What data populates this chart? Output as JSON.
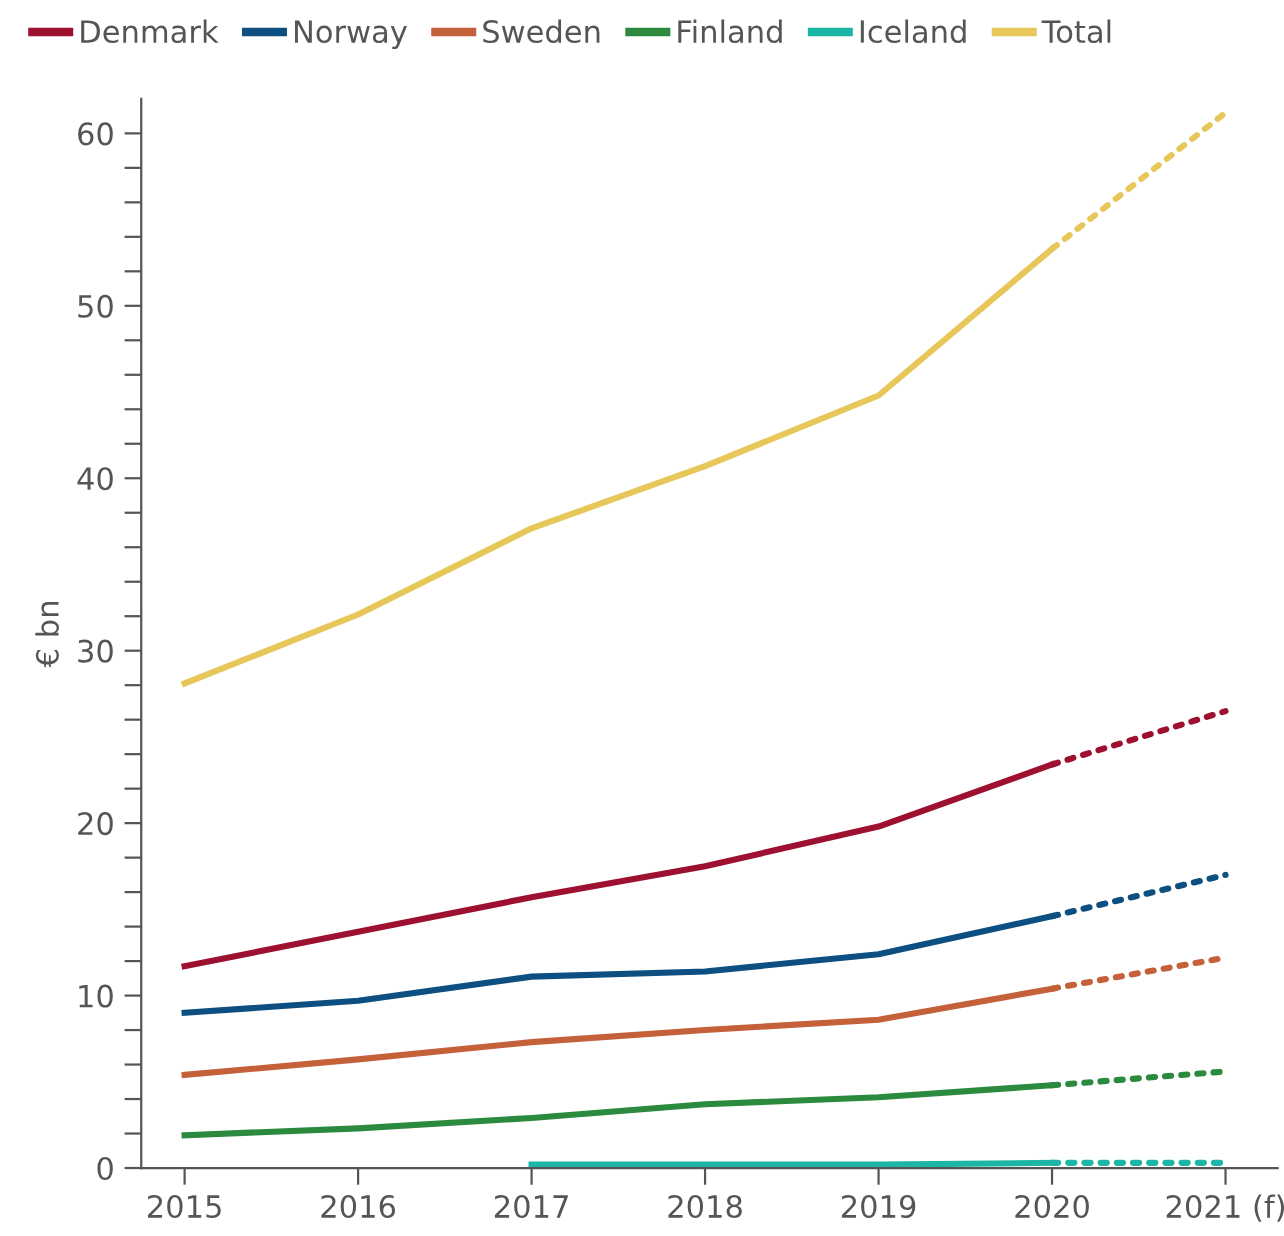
{
  "chart_data": {
    "type": "line",
    "ylabel": "€ bn",
    "categories": [
      "2015",
      "2016",
      "2017",
      "2018",
      "2019",
      "2020",
      "2021 (f)"
    ],
    "series": [
      {
        "name": "Denmark",
        "color": "#9e1030",
        "values": [
          11.7,
          13.7,
          15.7,
          17.5,
          19.8,
          23.4,
          null
        ]
      },
      {
        "name": "Norway",
        "color": "#0d4f80",
        "values": [
          9.0,
          9.7,
          11.1,
          11.4,
          12.4,
          14.6,
          null
        ]
      },
      {
        "name": "Sweden",
        "color": "#c4603a",
        "values": [
          5.4,
          6.3,
          7.3,
          8.0,
          8.6,
          10.4,
          null
        ]
      },
      {
        "name": "Finland",
        "color": "#2b8a3e",
        "values": [
          1.9,
          2.3,
          2.9,
          3.7,
          4.1,
          4.8,
          null
        ]
      },
      {
        "name": "Iceland",
        "color": "#1db5a5",
        "values": [
          null,
          null,
          0.2,
          0.2,
          0.2,
          0.3,
          null
        ]
      },
      {
        "name": "Total",
        "color": "#e8c75a",
        "values": [
          28.1,
          32.1,
          37.1,
          40.7,
          44.8,
          53.3,
          null
        ]
      },
      {
        "color": "#9e1030",
        "line_style": "dotted",
        "values": [
          null,
          null,
          null,
          null,
          null,
          23.4,
          26.5
        ]
      },
      {
        "color": "#0d4f80",
        "line_style": "dotted",
        "values": [
          null,
          null,
          null,
          null,
          null,
          14.6,
          17.0
        ]
      },
      {
        "color": "#c4603a",
        "line_style": "dotted",
        "values": [
          null,
          null,
          null,
          null,
          null,
          10.4,
          12.2
        ]
      },
      {
        "color": "#2b8a3e",
        "line_style": "dotted",
        "values": [
          null,
          null,
          null,
          null,
          null,
          4.8,
          5.6
        ]
      },
      {
        "color": "#1db5a5",
        "line_style": "dotted",
        "values": [
          null,
          null,
          null,
          null,
          null,
          0.3,
          0.3
        ]
      },
      {
        "color": "#e8c75a",
        "line_style": "dotted",
        "values": [
          null,
          null,
          null,
          null,
          null,
          53.3,
          61.2
        ]
      }
    ],
    "ylim": [
      0,
      62
    ],
    "yticks": [
      0,
      {
        "value": 2,
        "label": null
      },
      {
        "value": 4,
        "label": null
      },
      {
        "value": 6,
        "label": null
      },
      {
        "value": 8,
        "label": null
      },
      10,
      {
        "value": 12,
        "label": null
      },
      {
        "value": 14,
        "label": null
      },
      {
        "value": 16,
        "label": null
      },
      {
        "value": 18,
        "label": null
      },
      20,
      {
        "value": 22,
        "label": null
      },
      {
        "value": 24,
        "label": null
      },
      {
        "value": 26,
        "label": null
      },
      {
        "value": 28,
        "label": null
      },
      30,
      {
        "value": 32,
        "label": null
      },
      {
        "value": 34,
        "label": null
      },
      {
        "value": 36,
        "label": null
      },
      {
        "value": 38,
        "label": null
      },
      40,
      {
        "value": 42,
        "label": null
      },
      {
        "value": 44,
        "label": null
      },
      {
        "value": 46,
        "label": null
      },
      {
        "value": 48,
        "label": null
      },
      50,
      {
        "value": 52,
        "label": null
      },
      {
        "value": 54,
        "label": null
      },
      {
        "value": 56,
        "label": null
      },
      {
        "value": 58,
        "label": null
      },
      60
    ],
    "grid": false,
    "legend": "top",
    "line_style": "solid",
    "marker": "none"
  }
}
